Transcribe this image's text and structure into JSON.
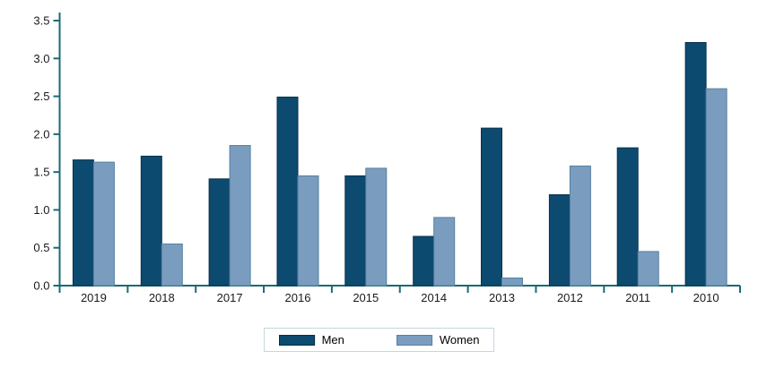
{
  "chart_data": {
    "type": "bar",
    "title": "",
    "xlabel": "",
    "ylabel": "",
    "categories": [
      "2019",
      "2018",
      "2017",
      "2016",
      "2015",
      "2014",
      "2013",
      "2012",
      "2011",
      "2010"
    ],
    "series": [
      {
        "name": "Men",
        "color": "#0d4a70",
        "border_color": "#092f49",
        "values": [
          1.66,
          1.71,
          1.41,
          2.49,
          1.45,
          0.65,
          2.08,
          1.2,
          1.82,
          3.21
        ]
      },
      {
        "name": "Women",
        "color": "#7a9dbf",
        "border_color": "#55809f",
        "values": [
          1.63,
          0.55,
          1.85,
          1.45,
          1.55,
          0.9,
          0.1,
          1.58,
          0.45,
          2.6
        ]
      }
    ],
    "ylim": [
      0,
      3.5
    ],
    "y_tick_step": 0.5,
    "y_tick_labels": [
      "0.0",
      "0.5",
      "1.0",
      "1.5",
      "2.0",
      "2.5",
      "3.0",
      "3.5"
    ],
    "grid": false,
    "legend_position": "bottom-center",
    "colors": {
      "axis": "#1a6b73",
      "text": "#1a1a1a",
      "legend_border": "#c3d7de",
      "background": "#ffffff"
    }
  }
}
